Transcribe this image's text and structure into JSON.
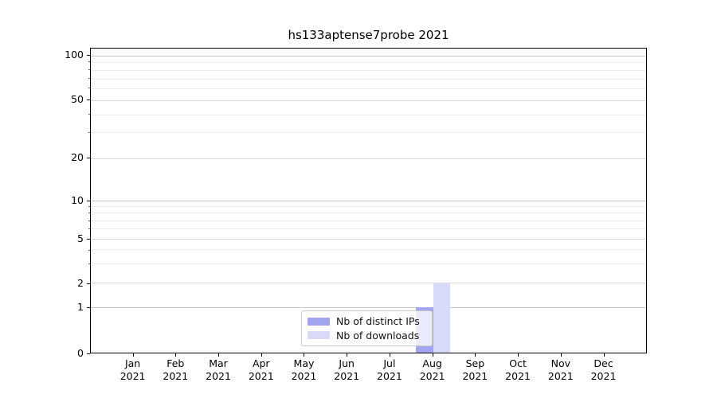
{
  "title": "hs133aptense7probe 2021",
  "legend": {
    "entries": [
      {
        "label": "Nb of distinct IPs",
        "color": "#a2a5ef"
      },
      {
        "label": "Nb of downloads",
        "color": "#d8daf8"
      }
    ]
  },
  "chart_data": {
    "type": "bar",
    "title": "hs133aptense7probe 2021",
    "xlabel": "",
    "ylabel": "",
    "year": "2021",
    "months": [
      "Jan",
      "Feb",
      "Mar",
      "Apr",
      "May",
      "Jun",
      "Jul",
      "Aug",
      "Sep",
      "Oct",
      "Nov",
      "Dec"
    ],
    "categories": [
      "Jan 2021",
      "Feb 2021",
      "Mar 2021",
      "Apr 2021",
      "May 2021",
      "Jun 2021",
      "Jul 2021",
      "Aug 2021",
      "Sep 2021",
      "Oct 2021",
      "Nov 2021",
      "Dec 2021"
    ],
    "series": [
      {
        "name": "Nb of distinct IPs",
        "color": "#a2a5ef",
        "values": [
          0,
          0,
          0,
          0,
          0,
          0,
          0,
          1,
          0,
          0,
          0,
          0
        ]
      },
      {
        "name": "Nb of downloads",
        "color": "#d8daf8",
        "values": [
          0,
          0,
          0,
          0,
          0,
          0,
          0,
          2,
          0,
          0,
          0,
          0
        ]
      }
    ],
    "yscale": "log-like with 0 baseline",
    "yticks": [
      0,
      1,
      2,
      5,
      10,
      20,
      50,
      100
    ],
    "ylim": [
      0,
      100
    ],
    "grid": "both",
    "legend_position": "lower center"
  },
  "colors": {
    "background": "#ffffff",
    "spine": "#000000",
    "grid_major": "#d8d8d8",
    "grid_major_dark": "#c6c6c6",
    "grid_minor": "#ececec",
    "text": "#000000",
    "legend_border": "#c9c9c9"
  }
}
